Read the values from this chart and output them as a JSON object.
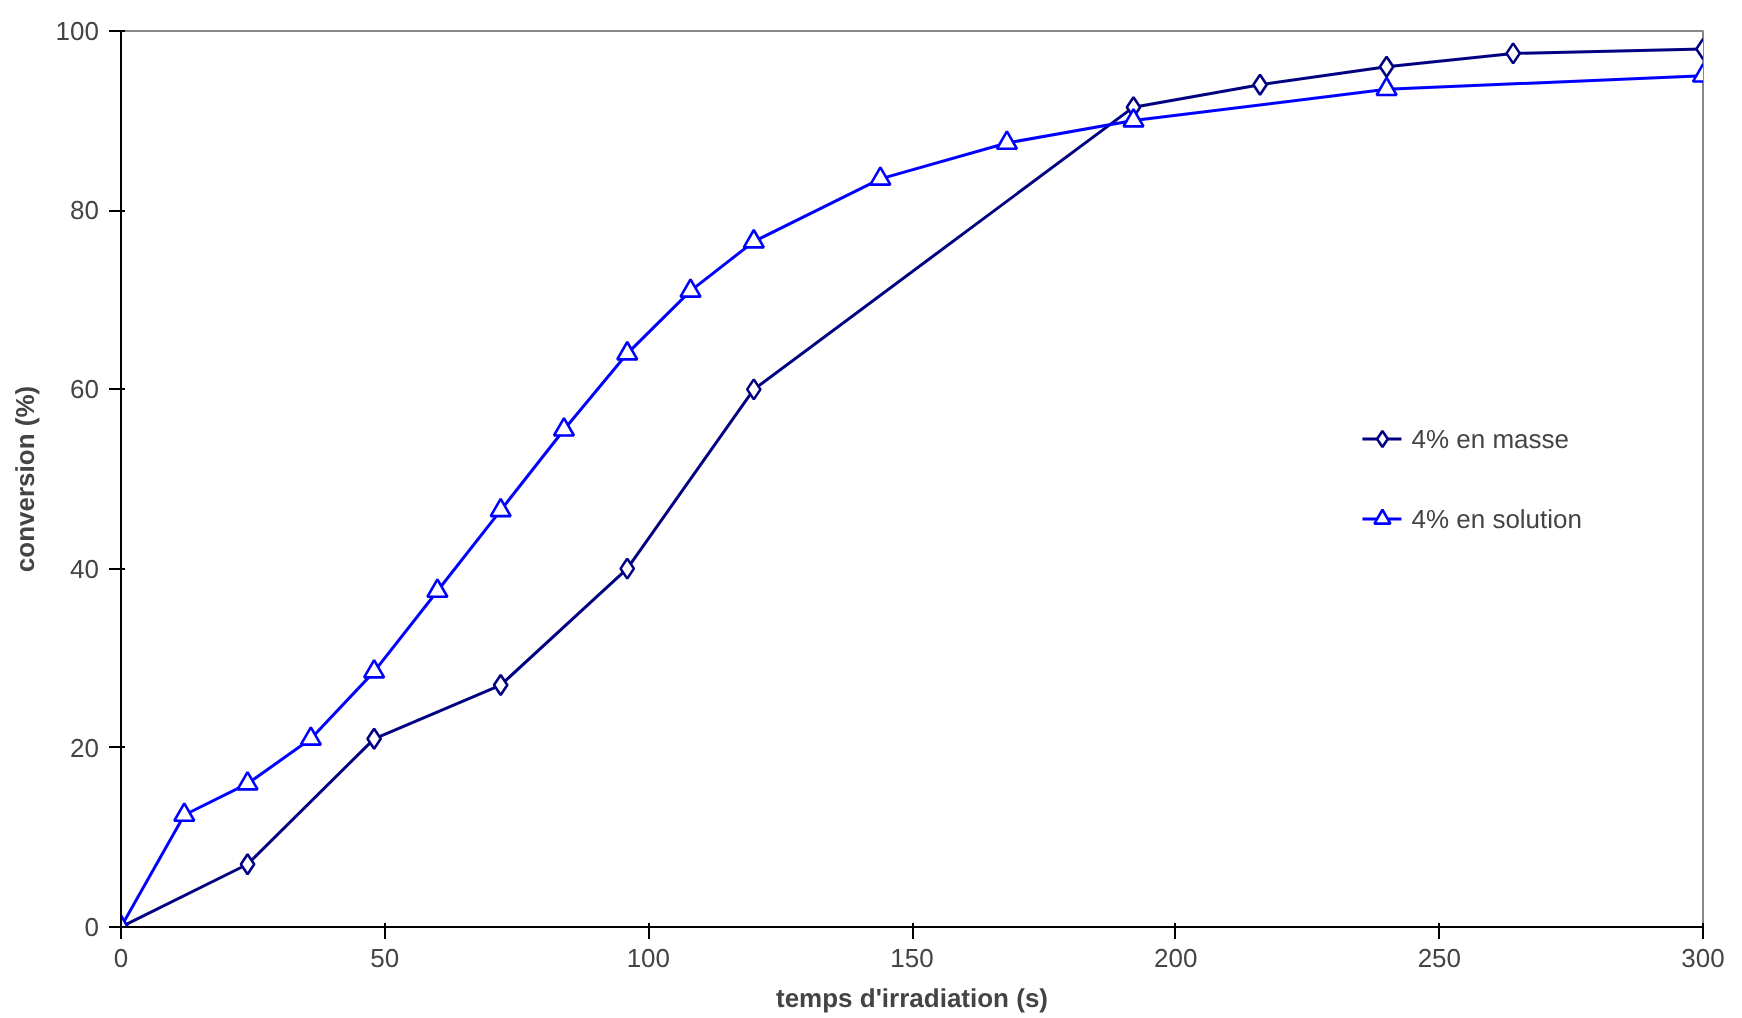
{
  "chart_data": {
    "type": "line",
    "xlabel": "temps d'irradiation (s)",
    "ylabel": "conversion (%)",
    "xlim": [
      0,
      300
    ],
    "ylim": [
      0,
      100
    ],
    "xticks": [
      0,
      50,
      100,
      150,
      200,
      250,
      300
    ],
    "yticks": [
      0,
      20,
      40,
      60,
      80,
      100
    ],
    "grid": false,
    "legend": "right",
    "line_style": "solid",
    "series": [
      {
        "name": "4% en masse",
        "color": "#000080",
        "marker": "diamond",
        "x": [
          0,
          24,
          48,
          72,
          96,
          120,
          192,
          216,
          240,
          264,
          300
        ],
        "values": [
          0,
          7,
          21,
          27,
          40,
          60,
          91.5,
          94,
          96,
          97.5,
          98
        ]
      },
      {
        "name": "4% en solution",
        "color": "#0000ff",
        "marker": "triangle",
        "x": [
          0,
          12,
          24,
          36,
          48,
          60,
          72,
          84,
          96,
          108,
          120,
          144,
          168,
          192,
          240,
          300
        ],
        "values": [
          0,
          12.5,
          16,
          21,
          28.5,
          37.5,
          46.5,
          55.5,
          64,
          71,
          76.5,
          83.5,
          87.5,
          90,
          93.5,
          95
        ]
      }
    ]
  }
}
